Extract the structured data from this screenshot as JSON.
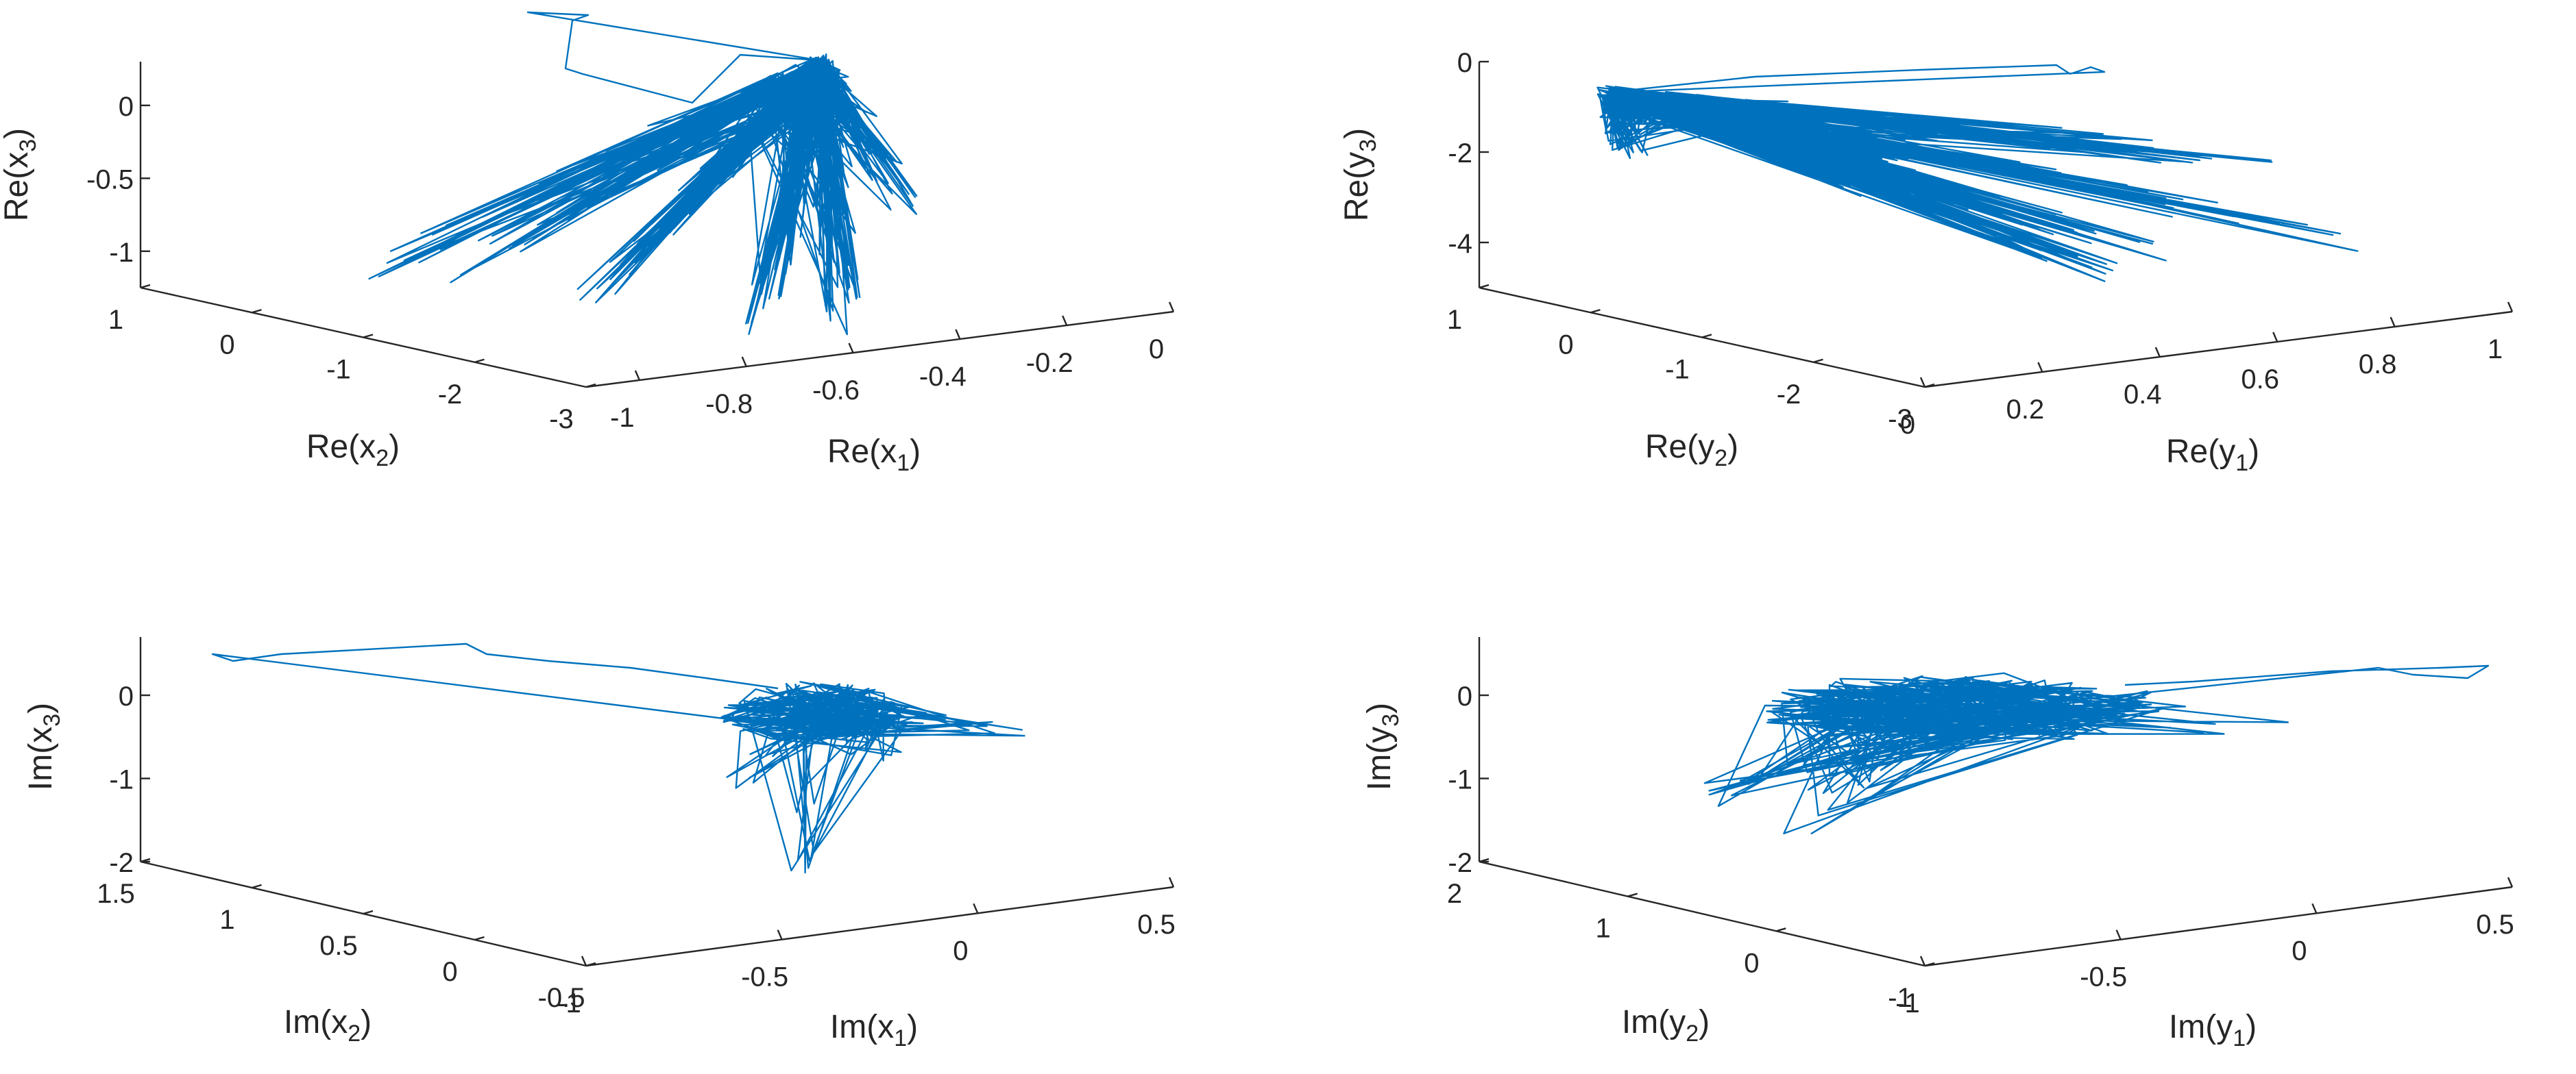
{
  "figure": {
    "layout": "2x2 grid of 3D line plots (trajectories)"
  },
  "chart_data": [
    {
      "type": "line",
      "subtype": "3d-trajectory",
      "panel": "top-left",
      "title": "",
      "line_color": "#0072BD",
      "x_axis": {
        "label_base": "Re(x",
        "label_sub": "1",
        "label_end": ")",
        "ticks": [
          "-1",
          "-0.8",
          "-0.6",
          "-0.4",
          "-0.2",
          "0"
        ],
        "lim": [
          -1.1,
          0
        ]
      },
      "y_axis": {
        "label_base": "Re(x",
        "label_sub": "2",
        "label_end": ")",
        "ticks": [
          "1",
          "0",
          "-1",
          "-2",
          "-3"
        ],
        "lim": [
          -3,
          1
        ]
      },
      "z_axis": {
        "label_base": "Re(x",
        "label_sub": "3",
        "label_end": ")",
        "ticks": [
          "0",
          "-0.5",
          "-1"
        ],
        "lim": [
          -1.25,
          0.3
        ]
      },
      "seed": 11
    },
    {
      "type": "line",
      "subtype": "3d-trajectory",
      "panel": "top-right",
      "title": "",
      "line_color": "#0072BD",
      "x_axis": {
        "label_base": "Re(y",
        "label_sub": "1",
        "label_end": ")",
        "ticks": [
          "0",
          "0.2",
          "0.4",
          "0.6",
          "0.8",
          "1"
        ],
        "lim": [
          0,
          1
        ]
      },
      "y_axis": {
        "label_base": "Re(y",
        "label_sub": "2",
        "label_end": ")",
        "ticks": [
          "1",
          "0",
          "-1",
          "-2",
          "-3"
        ],
        "lim": [
          -3,
          1
        ]
      },
      "z_axis": {
        "label_base": "Re(y",
        "label_sub": "3",
        "label_end": ")",
        "ticks": [
          "0",
          "-2",
          "-4"
        ],
        "lim": [
          -5,
          0
        ]
      },
      "seed": 23
    },
    {
      "type": "line",
      "subtype": "3d-trajectory",
      "panel": "bottom-left",
      "title": "",
      "line_color": "#0072BD",
      "x_axis": {
        "label_base": "Im(x",
        "label_sub": "1",
        "label_end": ")",
        "ticks": [
          "-1",
          "-0.5",
          "0",
          "0.5"
        ],
        "lim": [
          -1,
          0.5
        ]
      },
      "y_axis": {
        "label_base": "Im(x",
        "label_sub": "2",
        "label_end": ")",
        "ticks": [
          "1.5",
          "1",
          "0.5",
          "0",
          "-0.5"
        ],
        "lim": [
          -0.5,
          1.5
        ]
      },
      "z_axis": {
        "label_base": "Im(x",
        "label_sub": "3",
        "label_end": ")",
        "ticks": [
          "0",
          "-1",
          "-2"
        ],
        "lim": [
          -2,
          0.7
        ]
      },
      "seed": 37
    },
    {
      "type": "line",
      "subtype": "3d-trajectory",
      "panel": "bottom-right",
      "title": "",
      "line_color": "#0072BD",
      "x_axis": {
        "label_base": "Im(y",
        "label_sub": "1",
        "label_end": ")",
        "ticks": [
          "-1",
          "-0.5",
          "0",
          "0.5"
        ],
        "lim": [
          -1,
          0.5
        ]
      },
      "y_axis": {
        "label_base": "Im(y",
        "label_sub": "2",
        "label_end": ")",
        "ticks": [
          "2",
          "1",
          "0",
          "-1"
        ],
        "lim": [
          -1,
          2
        ]
      },
      "z_axis": {
        "label_base": "Im(y",
        "label_sub": "3",
        "label_end": ")",
        "ticks": [
          "0",
          "-1",
          "-2"
        ],
        "lim": [
          -2,
          0.7
        ]
      },
      "seed": 53
    }
  ]
}
